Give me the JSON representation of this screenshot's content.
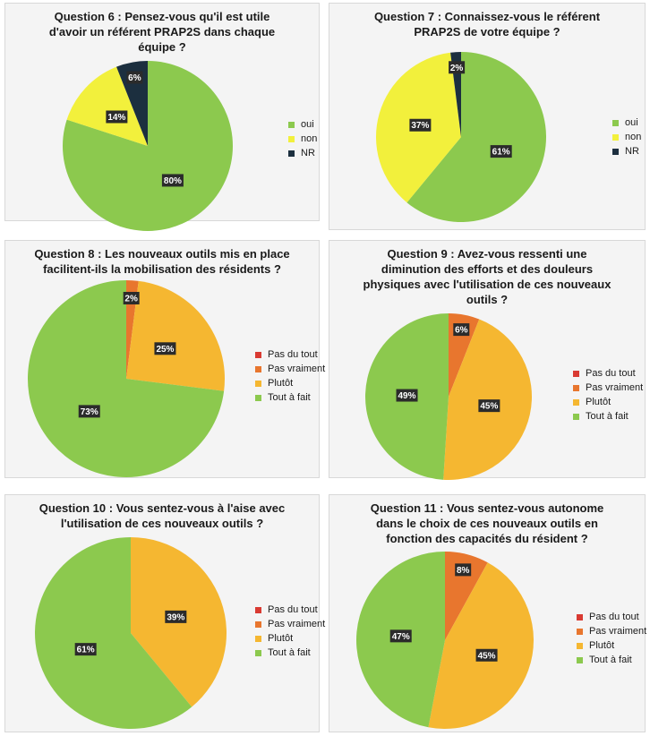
{
  "colors": {
    "oui": "#8cc94e",
    "non": "#f2f03c",
    "nr": "#1c2f3f",
    "pas_du_tout": "#d93a32",
    "pas_vraiment": "#e8762e",
    "plutot": "#f5b731",
    "tout_a_fait": "#8cc94e"
  },
  "chart_data": [
    {
      "type": "pie",
      "title": "Question 6 : Pensez-vous qu'il est utile\nd'avoir un référent PRAP2S dans chaque\néquipe ?",
      "legend": [
        "oui",
        "non",
        "NR"
      ],
      "slices": [
        {
          "label": "oui",
          "value": 80,
          "display": "80%",
          "color": "#8cc94e"
        },
        {
          "label": "non",
          "value": 14,
          "display": "14%",
          "color": "#f2f03c"
        },
        {
          "label": "NR",
          "value": 6,
          "display": "6%",
          "color": "#1c2f3f"
        }
      ]
    },
    {
      "type": "pie",
      "title": "Question 7 : Connaissez-vous le référent\nPRAP2S de votre équipe ?",
      "legend": [
        "oui",
        "non",
        "NR"
      ],
      "slices": [
        {
          "label": "oui",
          "value": 61,
          "display": "61%",
          "color": "#8cc94e"
        },
        {
          "label": "non",
          "value": 37,
          "display": "37%",
          "color": "#f2f03c"
        },
        {
          "label": "NR",
          "value": 2,
          "display": "2%",
          "color": "#1c2f3f"
        }
      ]
    },
    {
      "type": "pie",
      "title": "Question 8 : Les nouveaux outils mis en place\nfacilitent-ils la mobilisation des résidents ?",
      "legend": [
        "Pas du tout",
        "Pas vraiment",
        "Plutôt",
        "Tout à fait"
      ],
      "slices": [
        {
          "label": "Pas du tout",
          "value": 0,
          "display": "",
          "color": "#d93a32"
        },
        {
          "label": "Pas vraiment",
          "value": 2,
          "display": "2%",
          "color": "#e8762e"
        },
        {
          "label": "Plutôt",
          "value": 25,
          "display": "25%",
          "color": "#f5b731"
        },
        {
          "label": "Tout à fait",
          "value": 73,
          "display": "73%",
          "color": "#8cc94e"
        }
      ]
    },
    {
      "type": "pie",
      "title": "Question 9 : Avez-vous ressenti une\ndiminution des efforts et des douleurs\nphysiques avec l'utilisation de ces nouveaux\noutils ?",
      "legend": [
        "Pas du tout",
        "Pas vraiment",
        "Plutôt",
        "Tout à fait"
      ],
      "slices": [
        {
          "label": "Pas du tout",
          "value": 0,
          "display": "",
          "color": "#d93a32"
        },
        {
          "label": "Pas vraiment",
          "value": 6,
          "display": "6%",
          "color": "#e8762e"
        },
        {
          "label": "Plutôt",
          "value": 45,
          "display": "45%",
          "color": "#f5b731"
        },
        {
          "label": "Tout à fait",
          "value": 49,
          "display": "49%",
          "color": "#8cc94e"
        }
      ]
    },
    {
      "type": "pie",
      "title": "Question 10 : Vous sentez-vous à l'aise avec\nl'utilisation de ces nouveaux outils ?",
      "legend": [
        "Pas du tout",
        "Pas vraiment",
        "Plutôt",
        "Tout à fait"
      ],
      "slices": [
        {
          "label": "Pas du tout",
          "value": 0,
          "display": "",
          "color": "#d93a32"
        },
        {
          "label": "Pas vraiment",
          "value": 0,
          "display": "",
          "color": "#e8762e"
        },
        {
          "label": "Plutôt",
          "value": 39,
          "display": "39%",
          "color": "#f5b731"
        },
        {
          "label": "Tout à fait",
          "value": 61,
          "display": "61%",
          "color": "#8cc94e"
        }
      ]
    },
    {
      "type": "pie",
      "title": "Question 11 : Vous sentez-vous autonome\ndans le choix de ces nouveaux outils en\nfonction des capacités du résident ?",
      "legend": [
        "Pas du tout",
        "Pas vraiment",
        "Plutôt",
        "Tout à fait"
      ],
      "slices": [
        {
          "label": "Pas du tout",
          "value": 0,
          "display": "",
          "color": "#d93a32"
        },
        {
          "label": "Pas vraiment",
          "value": 8,
          "display": "8%",
          "color": "#e8762e"
        },
        {
          "label": "Plutôt",
          "value": 45,
          "display": "45%",
          "color": "#f5b731"
        },
        {
          "label": "Tout à fait",
          "value": 47,
          "display": "47%",
          "color": "#8cc94e"
        }
      ]
    }
  ]
}
